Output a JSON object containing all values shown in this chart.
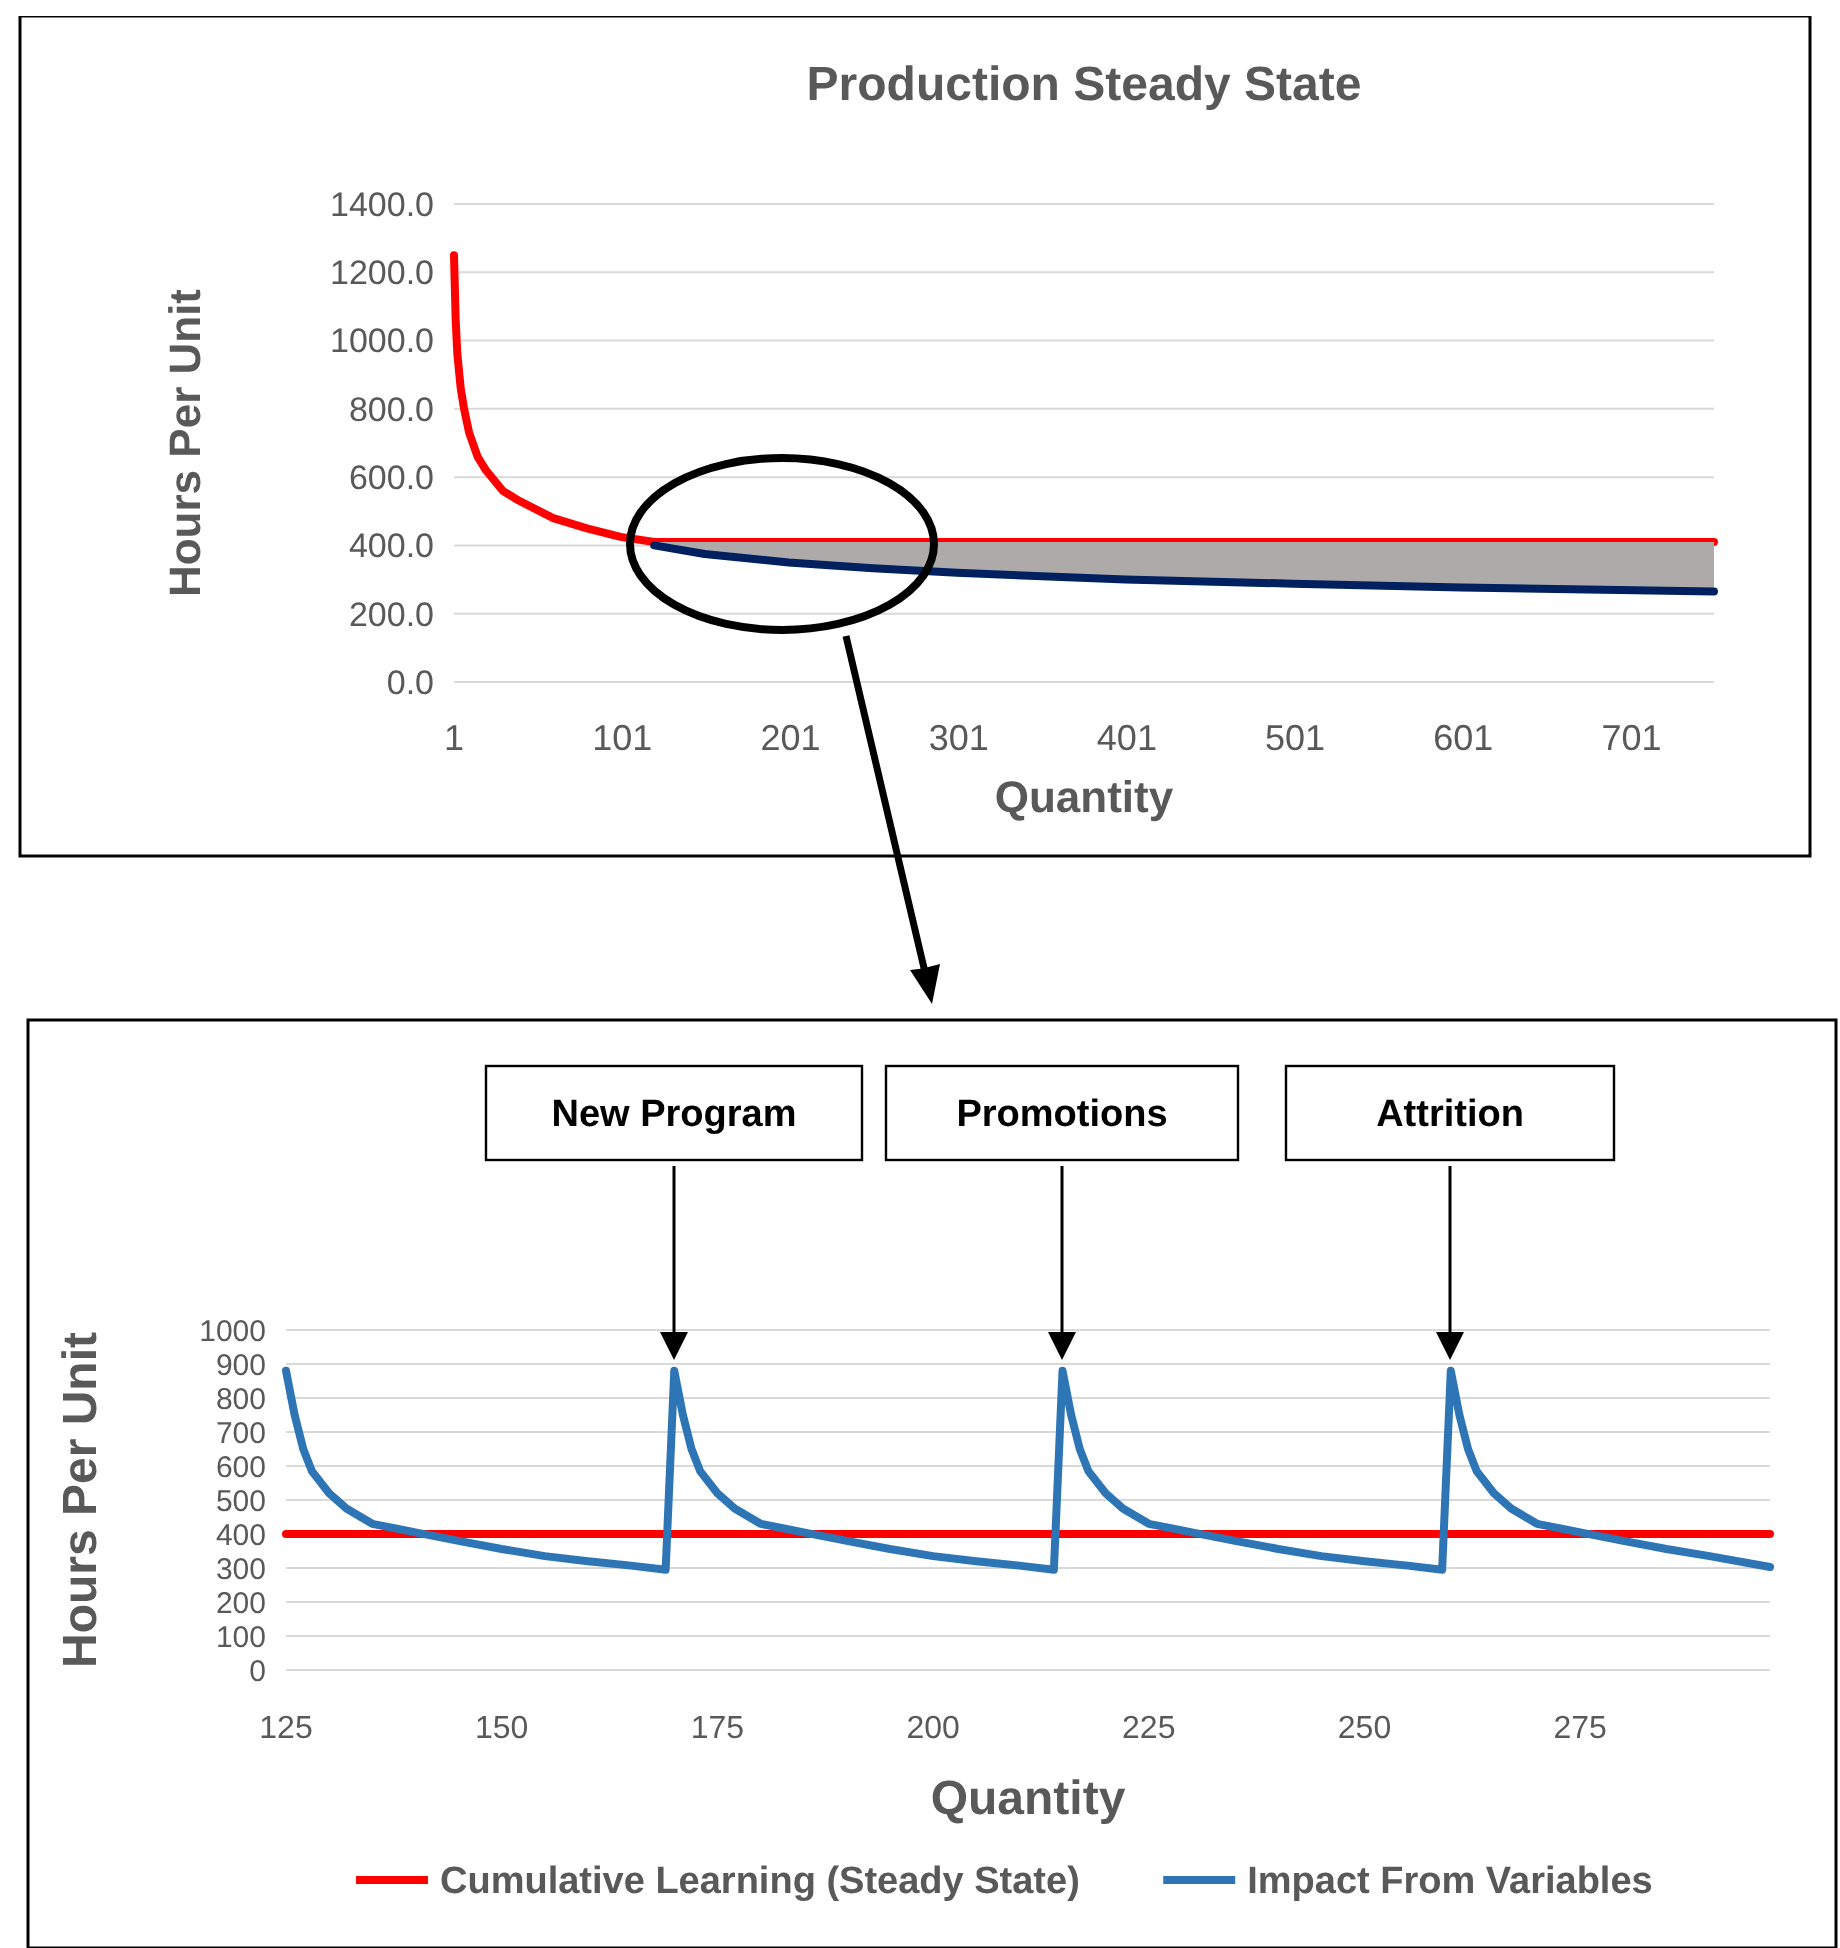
{
  "chart_data": [
    {
      "type": "line",
      "title": "Production Steady State",
      "xlabel": "Quantity",
      "ylabel": "Hours Per Unit",
      "xlim": [
        1,
        750
      ],
      "xticks": [
        1,
        101,
        201,
        301,
        401,
        501,
        601,
        701
      ],
      "ylim": [
        0,
        1400
      ],
      "yticks": [
        {
          "value": 0,
          "label": "0.0"
        },
        {
          "value": 200,
          "label": "200.0"
        },
        {
          "value": 400,
          "label": "400.0"
        },
        {
          "value": 600,
          "label": "600.0"
        },
        {
          "value": 800,
          "label": "800.0"
        },
        {
          "value": 1000,
          "label": "1000.0"
        },
        {
          "value": 1200,
          "label": "1200.0"
        },
        {
          "value": 1400,
          "label": "1400.0"
        }
      ],
      "grid": "y",
      "legend": false,
      "series": [
        {
          "color": "#ff0000",
          "x": [
            1,
            2,
            3,
            5,
            7,
            10,
            15,
            20,
            30,
            40,
            60,
            80,
            100,
            120,
            750
          ],
          "values": [
            1250,
            1060,
            960,
            860,
            800,
            730,
            660,
            620,
            560,
            530,
            480,
            450,
            425,
            410,
            410
          ]
        },
        {
          "color": "#002060",
          "x": [
            120,
            150,
            200,
            250,
            300,
            400,
            500,
            600,
            750
          ],
          "values": [
            400,
            375,
            350,
            333,
            320,
            300,
            288,
            277,
            265
          ],
          "lower": [
            400,
            375,
            350,
            333,
            320,
            300,
            288,
            277,
            265
          ],
          "upper": [
            410,
            410,
            410,
            410,
            410,
            410,
            410,
            410,
            410
          ]
        }
      ]
    },
    {
      "type": "line",
      "xlabel": "Quantity",
      "ylabel": "Hours Per Unit",
      "xlim": [
        125,
        297
      ],
      "xticks": [
        125,
        150,
        175,
        200,
        225,
        250,
        275
      ],
      "ylim": [
        0,
        1000
      ],
      "yticks": [
        0,
        100,
        200,
        300,
        400,
        500,
        600,
        700,
        800,
        900,
        1000
      ],
      "grid": "y",
      "legend": "bottom",
      "annotations": [
        "New Program",
        "Promotions",
        "Attrition"
      ],
      "series": [
        {
          "name": "Cumulative Learning (Steady State)",
          "color": "#ff0000",
          "x": [
            125,
            297
          ],
          "values": [
            400,
            400
          ]
        },
        {
          "name": "Impact From Variables",
          "color": "#2e75b6",
          "x": [
            125,
            126,
            127,
            128,
            130,
            132,
            135,
            140,
            145,
            150,
            155,
            160,
            165,
            169,
            170,
            171,
            172,
            173,
            175,
            177,
            180,
            185,
            190,
            195,
            200,
            205,
            210,
            214,
            215,
            216,
            217,
            218,
            220,
            222,
            225,
            230,
            235,
            240,
            245,
            250,
            255,
            259,
            260,
            261,
            262,
            263,
            265,
            267,
            270,
            275,
            280,
            285,
            290,
            297
          ],
          "values": [
            880,
            750,
            650,
            585,
            520,
            475,
            430,
            405,
            380,
            356,
            335,
            320,
            307,
            295,
            880,
            750,
            650,
            585,
            520,
            475,
            430,
            405,
            380,
            356,
            335,
            320,
            307,
            295,
            880,
            750,
            650,
            585,
            520,
            475,
            430,
            405,
            380,
            356,
            335,
            320,
            307,
            295,
            880,
            750,
            650,
            585,
            520,
            475,
            430,
            405,
            380,
            356,
            335,
            303
          ]
        }
      ]
    }
  ]
}
